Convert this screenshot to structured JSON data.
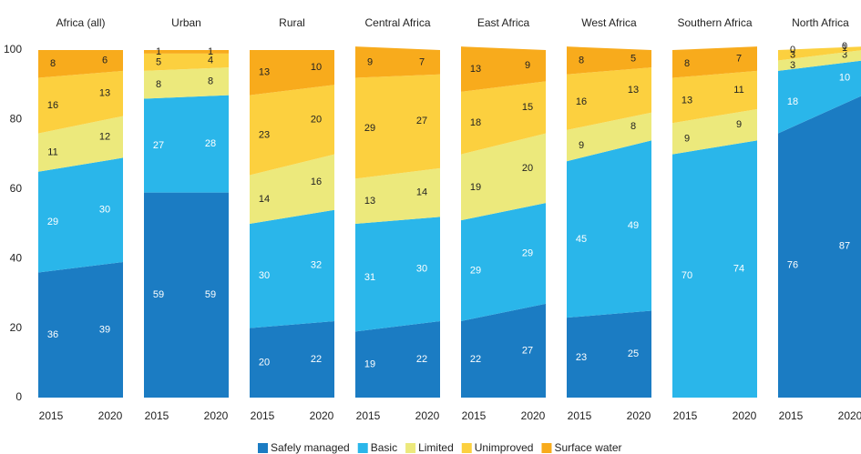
{
  "chart_data": {
    "type": "area",
    "ylim": [
      0,
      100
    ],
    "yticks": [
      0,
      20,
      40,
      60,
      80,
      100
    ],
    "legend": [
      {
        "name": "Safely managed",
        "color": "#1b7cc3"
      },
      {
        "name": "Basic",
        "color": "#2ab6ea"
      },
      {
        "name": "Limited",
        "color": "#ece97c"
      },
      {
        "name": "Unimproved",
        "color": "#fcd03f"
      },
      {
        "name": "Surface water",
        "color": "#f8ab1c"
      }
    ],
    "panels": [
      {
        "title": "Africa (all)",
        "categories": [
          "2015",
          "2020"
        ],
        "series": [
          {
            "values": [
              36,
              39
            ]
          },
          {
            "values": [
              29,
              30
            ]
          },
          {
            "values": [
              11,
              12
            ]
          },
          {
            "values": [
              16,
              13
            ]
          },
          {
            "values": [
              8,
              6
            ]
          }
        ]
      },
      {
        "title": "Urban",
        "categories": [
          "2015",
          "2020"
        ],
        "series": [
          {
            "values": [
              59,
              59
            ]
          },
          {
            "values": [
              27,
              28
            ]
          },
          {
            "values": [
              8,
              8
            ]
          },
          {
            "values": [
              5,
              4
            ]
          },
          {
            "values": [
              1,
              1
            ]
          }
        ]
      },
      {
        "title": "Rural",
        "categories": [
          "2015",
          "2020"
        ],
        "series": [
          {
            "values": [
              20,
              22
            ]
          },
          {
            "values": [
              30,
              32
            ]
          },
          {
            "values": [
              14,
              16
            ]
          },
          {
            "values": [
              23,
              20
            ]
          },
          {
            "values": [
              13,
              10
            ]
          }
        ]
      },
      {
        "title": "Central Africa",
        "categories": [
          "2015",
          "2020"
        ],
        "series": [
          {
            "values": [
              19,
              22
            ]
          },
          {
            "values": [
              31,
              30
            ]
          },
          {
            "values": [
              13,
              14
            ]
          },
          {
            "values": [
              29,
              27
            ]
          },
          {
            "values": [
              9,
              7
            ]
          }
        ]
      },
      {
        "title": "East Africa",
        "categories": [
          "2015",
          "2020"
        ],
        "series": [
          {
            "values": [
              22,
              27
            ]
          },
          {
            "values": [
              29,
              29
            ]
          },
          {
            "values": [
              19,
              20
            ]
          },
          {
            "values": [
              18,
              15
            ]
          },
          {
            "values": [
              13,
              9
            ]
          }
        ]
      },
      {
        "title": "West Africa",
        "categories": [
          "2015",
          "2020"
        ],
        "series": [
          {
            "values": [
              23,
              25
            ]
          },
          {
            "values": [
              45,
              49
            ]
          },
          {
            "values": [
              9,
              8
            ]
          },
          {
            "values": [
              16,
              13
            ]
          },
          {
            "values": [
              8,
              5
            ]
          }
        ]
      },
      {
        "title": "Southern Africa",
        "categories": [
          "2015",
          "2020"
        ],
        "series": [
          {
            "values": [
              0,
              0
            ]
          },
          {
            "values": [
              70,
              74
            ]
          },
          {
            "values": [
              9,
              9
            ]
          },
          {
            "values": [
              13,
              11
            ]
          },
          {
            "values": [
              8,
              7
            ]
          }
        ]
      },
      {
        "title": "North Africa",
        "categories": [
          "2015",
          "2020"
        ],
        "series": [
          {
            "values": [
              76,
              87
            ]
          },
          {
            "values": [
              18,
              10
            ]
          },
          {
            "values": [
              3,
              3
            ]
          },
          {
            "values": [
              3,
              1
            ]
          },
          {
            "values": [
              0,
              0
            ]
          }
        ]
      }
    ]
  }
}
